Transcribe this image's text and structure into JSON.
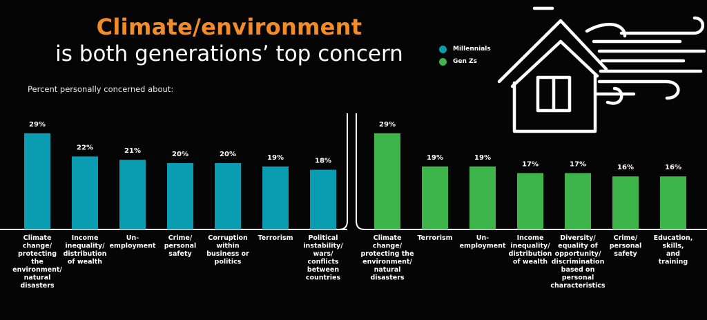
{
  "header": {
    "title_line1": "Climate/environment",
    "title_line2": "is both generations’ top concern",
    "subtitle": "Percent personally concerned about:"
  },
  "legend": [
    {
      "label": "Millennials",
      "color": "#0a9db1"
    },
    {
      "label": "Gen Zs",
      "color": "#3db54a"
    }
  ],
  "chart_data": [
    {
      "type": "bar",
      "series": [
        {
          "name": "Millennials",
          "values": [
            29,
            22,
            21,
            20,
            20,
            19,
            18
          ]
        }
      ],
      "categories": [
        "Climate change/ protecting the environment/ natural disasters",
        "Income inequality/ distribution of wealth",
        "Un- employment",
        "Crime/ personal safety",
        "Corruption within business or politics",
        "Terrorism",
        "Political instability/ wars/ conflicts between countries"
      ],
      "category_lines": [
        [
          "Climate",
          "change/",
          "protecting",
          "the",
          "environment/",
          "natural",
          "disasters"
        ],
        [
          "Income",
          "inequality/",
          "distribution",
          "of wealth"
        ],
        [
          "Un-",
          "employment"
        ],
        [
          "Crime/",
          "personal",
          "safety"
        ],
        [
          "Corruption",
          "within",
          "business or",
          "politics"
        ],
        [
          "Terrorism"
        ],
        [
          "Political",
          "instability/",
          "wars/",
          "conflicts",
          "between",
          "countries"
        ]
      ],
      "value_labels": [
        "29%",
        "22%",
        "21%",
        "20%",
        "20%",
        "19%",
        "18%"
      ],
      "color": "#0a9db1"
    },
    {
      "type": "bar",
      "series": [
        {
          "name": "Gen Zs",
          "values": [
            29,
            19,
            19,
            17,
            17,
            16,
            16
          ]
        }
      ],
      "categories": [
        "Climate change/ protecting the environment/ natural disasters",
        "Terrorism",
        "Un- employment",
        "Income inequality/ distribution of wealth",
        "Diversity/ equality of opportunity/ discrimination based on personal characteristics",
        "Crime/ personal safety",
        "Education, skills, and training"
      ],
      "category_lines": [
        [
          "Climate",
          "change/",
          "protecting the",
          "environment/",
          "natural",
          "disasters"
        ],
        [
          "Terrorism"
        ],
        [
          "Un-",
          "employment"
        ],
        [
          "Income",
          "inequality/",
          "distribution",
          "of wealth"
        ],
        [
          "Diversity/",
          "equality of",
          "opportunity/",
          "discrimination",
          "based on",
          "personal",
          "characteristics"
        ],
        [
          "Crime/",
          "personal",
          "safety"
        ],
        [
          "Education,",
          "skills,",
          "and",
          "training"
        ]
      ],
      "value_labels": [
        "29%",
        "19%",
        "19%",
        "17%",
        "17%",
        "16%",
        "16%"
      ],
      "color": "#3db54a"
    }
  ]
}
